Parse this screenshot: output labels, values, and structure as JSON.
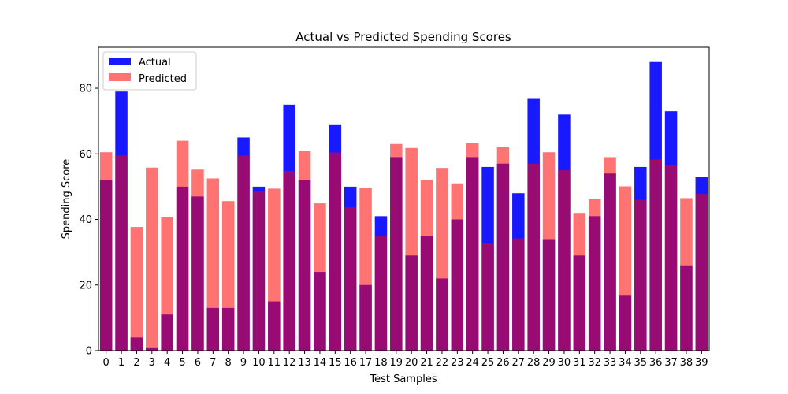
{
  "chart_data": {
    "type": "bar",
    "title": "Actual vs Predicted Spending Scores",
    "xlabel": "Test Samples",
    "ylabel": "Spending Score",
    "ylim": [
      0,
      92.5
    ],
    "yticks": [
      0,
      20,
      40,
      60,
      80
    ],
    "grid": false,
    "legend": "top-left",
    "categories": [
      "0",
      "1",
      "2",
      "3",
      "4",
      "5",
      "6",
      "7",
      "8",
      "9",
      "10",
      "11",
      "12",
      "13",
      "14",
      "15",
      "16",
      "17",
      "18",
      "19",
      "20",
      "21",
      "22",
      "23",
      "24",
      "25",
      "26",
      "27",
      "28",
      "29",
      "30",
      "31",
      "32",
      "33",
      "34",
      "35",
      "36",
      "37",
      "38",
      "39"
    ],
    "series": [
      {
        "name": "Actual",
        "color": "#0000ff",
        "opacity": 0.9,
        "values": [
          52,
          79,
          4,
          1,
          11,
          50,
          47,
          13,
          13,
          65,
          50,
          15,
          75,
          52,
          24,
          69,
          50,
          20,
          41,
          59,
          29,
          35,
          22,
          40,
          59,
          56,
          57,
          48,
          77,
          34,
          72,
          29,
          41,
          54,
          17,
          56,
          88,
          73,
          26,
          53
        ]
      },
      {
        "name": "Predicted",
        "color": "#ff0000",
        "opacity": 0.55,
        "values": [
          60.5,
          59.5,
          37.7,
          55.8,
          40.6,
          64,
          55.2,
          52.5,
          45.6,
          59.5,
          48.6,
          49.4,
          54.8,
          60.8,
          44.9,
          60.4,
          43.7,
          49.6,
          34.9,
          63,
          61.8,
          52,
          55.7,
          51,
          63.4,
          32.7,
          62,
          34.2,
          57,
          60.5,
          55,
          42,
          46.2,
          59,
          50.1,
          46,
          58.3,
          56.6,
          46.5,
          47.8
        ]
      }
    ]
  }
}
